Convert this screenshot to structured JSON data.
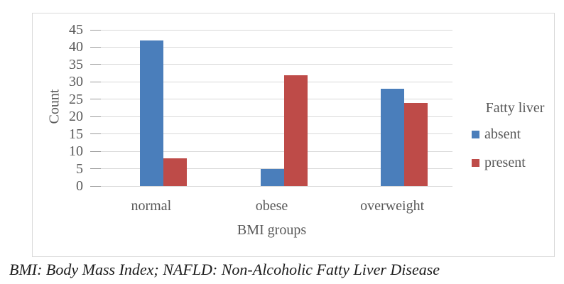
{
  "figure": {
    "caption": "BMI: Body Mass Index; NAFLD: Non-Alcoholic Fatty Liver Disease"
  },
  "chart_data": {
    "type": "bar",
    "title": "",
    "categories": [
      "normal",
      "obese",
      "overweight"
    ],
    "series": [
      {
        "name": "absent",
        "color": "#4a7ebb",
        "values": [
          42,
          5,
          28
        ]
      },
      {
        "name": "present",
        "color": "#be4b48",
        "values": [
          8,
          32,
          24
        ]
      }
    ],
    "xlabel": "BMI groups",
    "ylabel": "Count",
    "ylim": [
      0,
      45
    ],
    "ytick_step": 5,
    "yticks": [
      0,
      5,
      10,
      15,
      20,
      25,
      30,
      35,
      40,
      45
    ],
    "legend_title": "Fatty liver",
    "legend_position": "right",
    "grid": true,
    "colors": {
      "gridline": "#d9d9d9",
      "frame_border": "#d9d9d9",
      "axis_text": "#595959"
    }
  }
}
